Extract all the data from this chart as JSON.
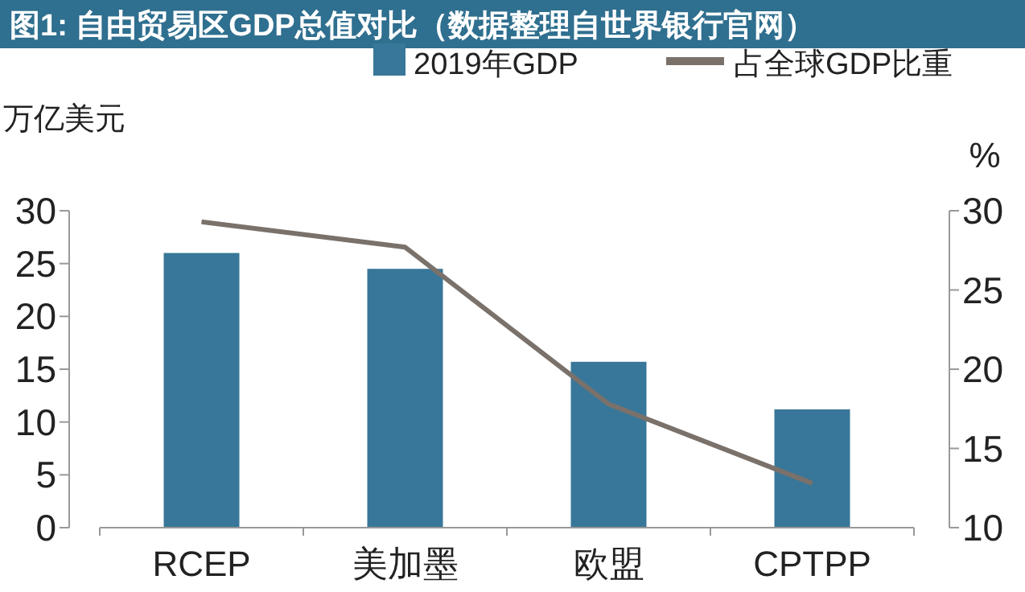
{
  "chart_data": {
    "type": "bar",
    "title": "图1: 自由贸易区GDP总值对比（数据整理自世界银行官网）",
    "ylabel": "万亿美元",
    "y2label": "%",
    "categories": [
      "RCEP",
      "美加墨",
      "欧盟",
      "CPTPP"
    ],
    "series": [
      {
        "name": "2019年GDP",
        "color": "#387799",
        "values": [
          26.0,
          24.5,
          15.7,
          11.2
        ]
      },
      {
        "name": "占全球GDP比重",
        "type": "line",
        "axis": "y2",
        "color": "#7a716b",
        "values": [
          29.3,
          27.7,
          17.8,
          12.8
        ]
      }
    ],
    "ylim": [
      0,
      30
    ],
    "yticks": [
      0,
      5,
      10,
      15,
      20,
      25,
      30
    ],
    "y2lim": [
      10,
      30
    ],
    "y2ticks": [
      10,
      15,
      20,
      25,
      30
    ],
    "legend": "top",
    "grid": false
  }
}
